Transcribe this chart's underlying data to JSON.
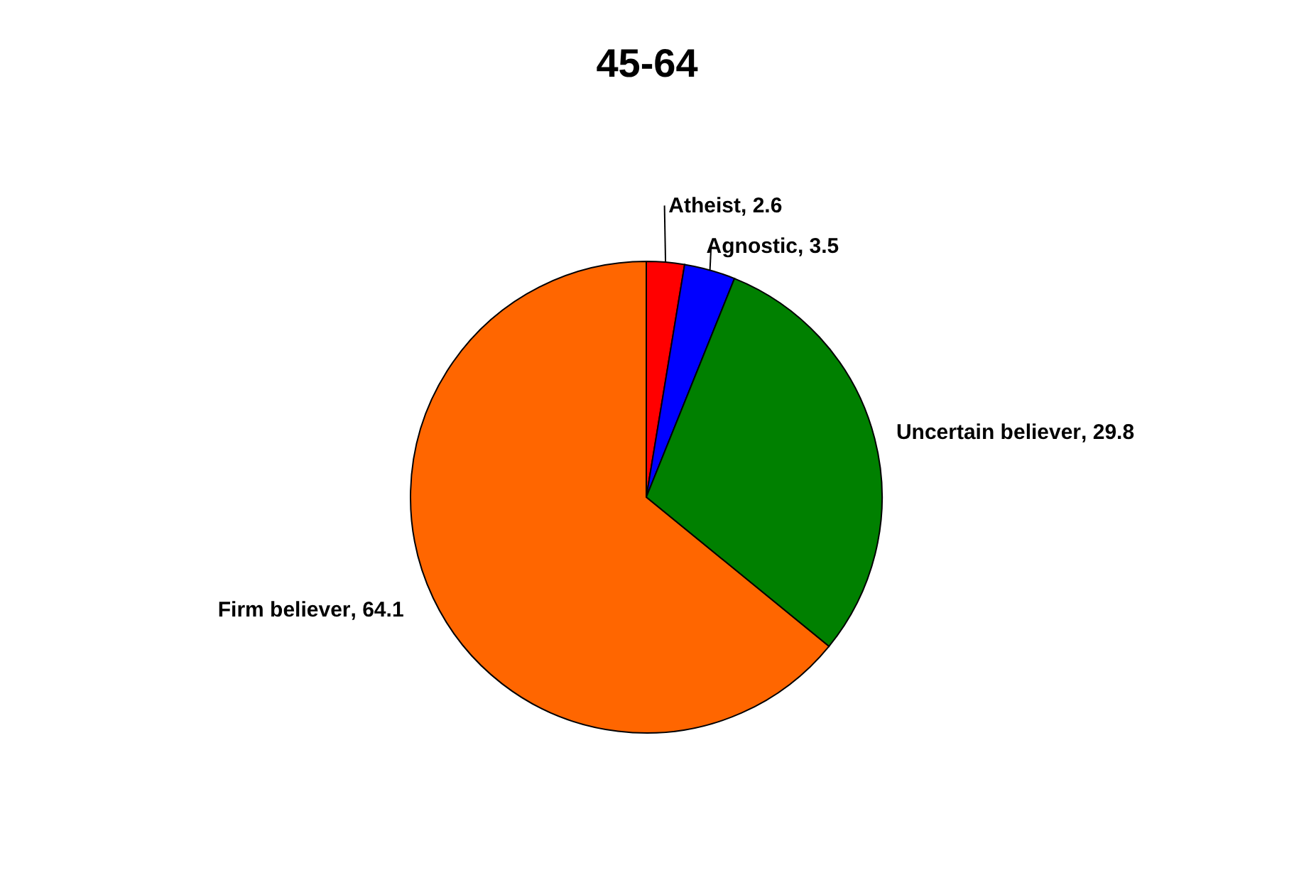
{
  "chart_data": {
    "type": "pie",
    "title": "45-64",
    "categories": [
      "Atheist",
      "Agnostic",
      "Uncertain believer",
      "Firm believer"
    ],
    "values": [
      2.6,
      3.5,
      29.8,
      64.1
    ],
    "colors": [
      "#ff0000",
      "#0000ff",
      "#008000",
      "#ff6600"
    ],
    "value_labels": [
      ", 2.6",
      ", 3.5",
      ", 29.8",
      ", 64.1"
    ],
    "legend": false
  }
}
